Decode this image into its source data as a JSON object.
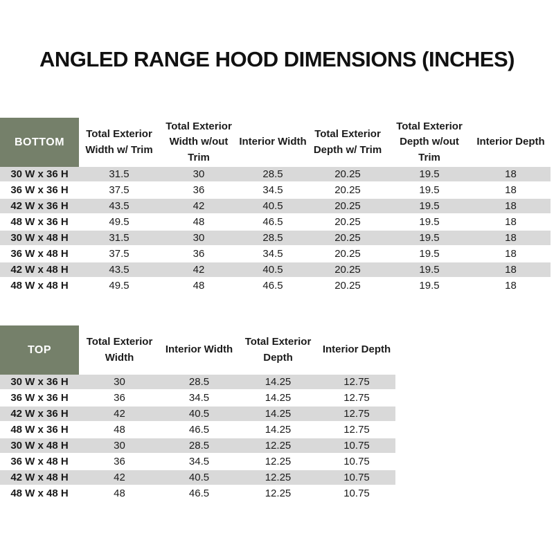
{
  "title": "ANGLED RANGE HOOD DIMENSIONS (INCHES)",
  "colors": {
    "corner_green": "#75806a",
    "stripe_gray": "#d9d9d9",
    "header_text": "#1b1b1b",
    "corner_text": "#ffffff"
  },
  "bottom_table": {
    "corner_label": "BOTTOM",
    "columns": [
      "Total Exterior Width w/ Trim",
      "Total Exterior Width w/out Trim",
      "Interior Width",
      "Total Exterior Depth w/ Trim",
      "Total Exterior Depth w/out Trim",
      "Interior Depth"
    ],
    "rows": [
      {
        "label": "30 W x 36 H",
        "values": [
          "31.5",
          "30",
          "28.5",
          "20.25",
          "19.5",
          "18"
        ]
      },
      {
        "label": "36 W x 36 H",
        "values": [
          "37.5",
          "36",
          "34.5",
          "20.25",
          "19.5",
          "18"
        ]
      },
      {
        "label": "42 W x 36 H",
        "values": [
          "43.5",
          "42",
          "40.5",
          "20.25",
          "19.5",
          "18"
        ]
      },
      {
        "label": "48 W x 36 H",
        "values": [
          "49.5",
          "48",
          "46.5",
          "20.25",
          "19.5",
          "18"
        ]
      },
      {
        "label": "30 W x 48 H",
        "values": [
          "31.5",
          "30",
          "28.5",
          "20.25",
          "19.5",
          "18"
        ]
      },
      {
        "label": "36 W x 48 H",
        "values": [
          "37.5",
          "36",
          "34.5",
          "20.25",
          "19.5",
          "18"
        ]
      },
      {
        "label": "42 W x 48 H",
        "values": [
          "43.5",
          "42",
          "40.5",
          "20.25",
          "19.5",
          "18"
        ]
      },
      {
        "label": "48 W x 48 H",
        "values": [
          "49.5",
          "48",
          "46.5",
          "20.25",
          "19.5",
          "18"
        ]
      }
    ]
  },
  "top_table": {
    "corner_label": "TOP",
    "columns": [
      "Total Exterior Width",
      "Interior Width",
      "Total Exterior Depth",
      "Interior Depth"
    ],
    "rows": [
      {
        "label": "30 W x 36 H",
        "values": [
          "30",
          "28.5",
          "14.25",
          "12.75"
        ]
      },
      {
        "label": "36 W x 36 H",
        "values": [
          "36",
          "34.5",
          "14.25",
          "12.75"
        ]
      },
      {
        "label": "42 W x 36 H",
        "values": [
          "42",
          "40.5",
          "14.25",
          "12.75"
        ]
      },
      {
        "label": "48 W x 36 H",
        "values": [
          "48",
          "46.5",
          "14.25",
          "12.75"
        ]
      },
      {
        "label": "30 W x 48 H",
        "values": [
          "30",
          "28.5",
          "12.25",
          "10.75"
        ]
      },
      {
        "label": "36 W x 48 H",
        "values": [
          "36",
          "34.5",
          "12.25",
          "10.75"
        ]
      },
      {
        "label": "42 W x 48 H",
        "values": [
          "42",
          "40.5",
          "12.25",
          "10.75"
        ]
      },
      {
        "label": "48 W x 48 H",
        "values": [
          "48",
          "46.5",
          "12.25",
          "10.75"
        ]
      }
    ]
  }
}
